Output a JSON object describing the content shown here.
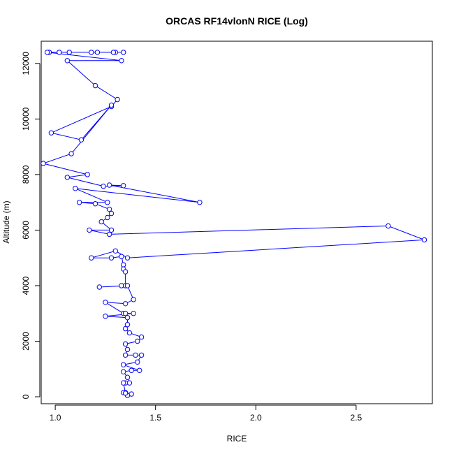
{
  "chart_data": {
    "type": "line",
    "title": "ORCAS RF14vlonN RICE (Log)",
    "xlabel": "RICE",
    "ylabel": "Altitude (m)",
    "xlim": [
      0.93,
      2.88
    ],
    "ylim": [
      -250,
      12800
    ],
    "x_ticks": [
      1.0,
      1.5,
      2.0,
      2.5
    ],
    "x_tick_labels": [
      "1.0",
      "1.5",
      "2.0",
      "2.5"
    ],
    "y_ticks": [
      0,
      2000,
      4000,
      6000,
      8000,
      10000,
      12000
    ],
    "y_tick_labels": [
      "0",
      "2000",
      "4000",
      "6000",
      "8000",
      "10000",
      "12000"
    ],
    "grid": false,
    "legend": "none",
    "marker": "open-circle",
    "color": "#0000ff",
    "series": [
      {
        "points": [
          [
            1.34,
            12400
          ],
          [
            1.3,
            12400
          ],
          [
            1.29,
            12400
          ],
          [
            1.21,
            12400
          ],
          [
            1.18,
            12400
          ],
          [
            1.07,
            12400
          ],
          [
            1.02,
            12400
          ],
          [
            0.97,
            12400
          ],
          [
            0.96,
            12400
          ],
          [
            1.33,
            12100
          ],
          [
            1.06,
            12100
          ],
          [
            1.2,
            11200
          ],
          [
            1.31,
            10700
          ],
          [
            1.28,
            10450
          ],
          [
            0.98,
            9500
          ],
          [
            1.13,
            9250
          ],
          [
            1.28,
            10500
          ],
          [
            1.08,
            8750
          ],
          [
            0.94,
            8400
          ],
          [
            1.16,
            8000
          ],
          [
            1.06,
            7900
          ],
          [
            1.24,
            7580
          ],
          [
            1.34,
            7600
          ],
          [
            1.27,
            7620
          ],
          [
            1.72,
            7000
          ],
          [
            1.1,
            7500
          ],
          [
            1.26,
            7000
          ],
          [
            1.12,
            7000
          ],
          [
            1.2,
            6950
          ],
          [
            1.27,
            6750
          ],
          [
            1.28,
            6600
          ],
          [
            1.26,
            6450
          ],
          [
            1.23,
            6300
          ],
          [
            1.28,
            6000
          ],
          [
            1.17,
            6000
          ],
          [
            1.27,
            5850
          ],
          [
            2.66,
            6150
          ],
          [
            2.84,
            5650
          ],
          [
            1.36,
            5000
          ],
          [
            1.3,
            5250
          ],
          [
            1.18,
            5000
          ],
          [
            1.28,
            5000
          ],
          [
            1.33,
            5050
          ],
          [
            1.34,
            4750
          ],
          [
            1.34,
            4600
          ],
          [
            1.35,
            4500
          ],
          [
            1.35,
            4000
          ],
          [
            1.33,
            4000
          ],
          [
            1.35,
            4000
          ],
          [
            1.22,
            3950
          ],
          [
            1.36,
            4000
          ],
          [
            1.39,
            3500
          ],
          [
            1.35,
            3350
          ],
          [
            1.25,
            3400
          ],
          [
            1.34,
            3000
          ],
          [
            1.35,
            3000
          ],
          [
            1.39,
            3000
          ],
          [
            1.25,
            2900
          ],
          [
            1.36,
            2850
          ],
          [
            1.36,
            2600
          ],
          [
            1.35,
            2450
          ],
          [
            1.37,
            2300
          ],
          [
            1.43,
            2150
          ],
          [
            1.41,
            2000
          ],
          [
            1.35,
            1900
          ],
          [
            1.36,
            1700
          ],
          [
            1.35,
            1500
          ],
          [
            1.4,
            1500
          ],
          [
            1.43,
            1500
          ],
          [
            1.41,
            1250
          ],
          [
            1.34,
            1150
          ],
          [
            1.42,
            950
          ],
          [
            1.38,
            950
          ],
          [
            1.34,
            900
          ],
          [
            1.36,
            700
          ],
          [
            1.37,
            500
          ],
          [
            1.35,
            500
          ],
          [
            1.34,
            500
          ],
          [
            1.35,
            150
          ],
          [
            1.38,
            100
          ],
          [
            1.36,
            50
          ],
          [
            1.34,
            150
          ],
          [
            1.35,
            130
          ]
        ]
      }
    ]
  }
}
